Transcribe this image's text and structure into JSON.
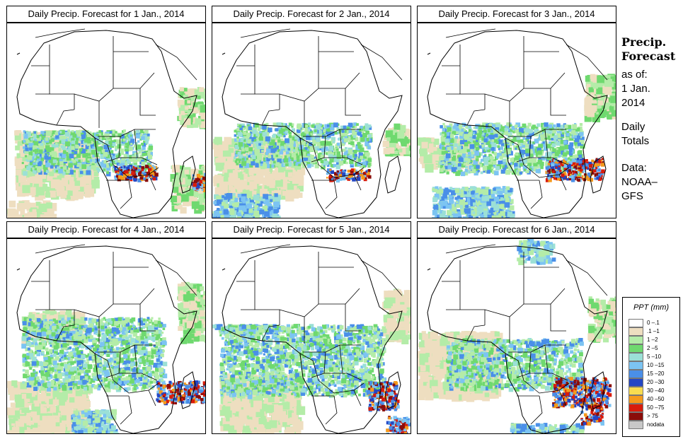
{
  "panels": [
    {
      "title": "Daily Precip. Forecast for  1 Jan., 2014"
    },
    {
      "title": "Daily Precip. Forecast for  2 Jan., 2014"
    },
    {
      "title": "Daily Precip. Forecast for  3 Jan., 2014"
    },
    {
      "title": "Daily Precip. Forecast for  4 Jan., 2014"
    },
    {
      "title": "Daily Precip. Forecast for  5 Jan., 2014"
    },
    {
      "title": "Daily Precip. Forecast for  6 Jan., 2014"
    }
  ],
  "sidebar": {
    "heading_line1": "Precip.",
    "heading_line2": "Forecast",
    "asof": "as of:",
    "date_line1": "1 Jan.",
    "date_line2": "2014",
    "totals_line1": "Daily",
    "totals_line2": "Totals",
    "data_line1": "Data:",
    "data_line2": "NOAA–",
    "data_line3": "GFS"
  },
  "legend": {
    "title": "PPT (mm)",
    "items": [
      {
        "label": "0 –.1",
        "color": "#ffffff"
      },
      {
        "label": ".1 –1",
        "color": "#eedec0"
      },
      {
        "label": "1 –2",
        "color": "#b4eca8"
      },
      {
        "label": "2 –5",
        "color": "#6fd96f"
      },
      {
        "label": "5 –10",
        "color": "#9be0d6"
      },
      {
        "label": "10 –15",
        "color": "#7cc4f2"
      },
      {
        "label": "15 –20",
        "color": "#4a8fe8"
      },
      {
        "label": "20 –30",
        "color": "#2447c4"
      },
      {
        "label": "30 –40",
        "color": "#f8dc50"
      },
      {
        "label": "40 –50",
        "color": "#f59a1c"
      },
      {
        "label": "50 –75",
        "color": "#d81c0c"
      },
      {
        "label": "> 75",
        "color": "#8a0d0a"
      },
      {
        "label": "nodata",
        "color": "#c8c8c8"
      }
    ]
  }
}
